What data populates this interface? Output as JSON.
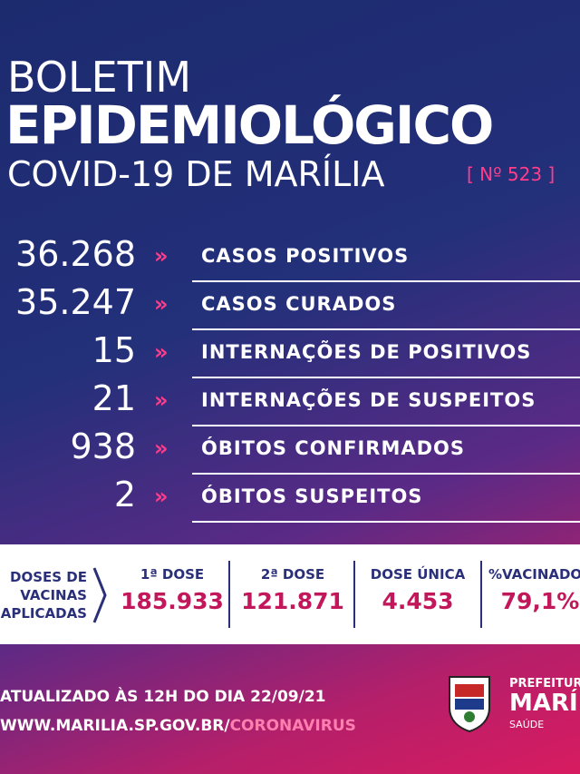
{
  "header": {
    "line1": "BOLETIM",
    "line2": "EPIDEMIOLÓGICO",
    "line3": "COVID-19 DE MARÍLIA",
    "edition": "[ Nº 523 ]"
  },
  "stats": [
    {
      "value": "36.268",
      "label": "CASOS POSITIVOS"
    },
    {
      "value": "35.247",
      "label": "CASOS CURADOS"
    },
    {
      "value": "15",
      "label": "INTERNAÇÕES DE POSITIVOS"
    },
    {
      "value": "21",
      "label": "INTERNAÇÕES DE SUSPEITOS"
    },
    {
      "value": "938",
      "label": "ÓBITOS CONFIRMADOS"
    },
    {
      "value": "2",
      "label": "ÓBITOS SUSPEITOS"
    }
  ],
  "vaccines": {
    "title": [
      "DOSES DE",
      "VACINAS",
      "APLICADAS"
    ],
    "items": [
      {
        "label": "1ª DOSE",
        "value": "185.933"
      },
      {
        "label": "2ª DOSE",
        "value": "121.871"
      },
      {
        "label": "DOSE ÚNICA",
        "value": "4.453"
      },
      {
        "label": "%VACINADOS",
        "value": "79,1%"
      }
    ]
  },
  "footer": {
    "updated": "ATUALIZADO ÀS 12H DO DIA 22/09/21",
    "site": "WWW.MARILIA.SP.GOV.BR/",
    "site_path": "CORONAVIRUS",
    "org1": "PREFEITURA",
    "org2": "MARÍLIA",
    "org3": "SAÚDE"
  }
}
